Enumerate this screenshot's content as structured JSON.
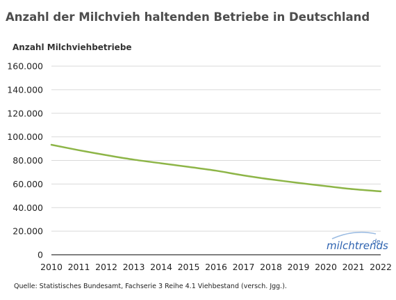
{
  "chart_data": {
    "type": "line",
    "title": "Anzahl der Milchvieh haltenden Betriebe in Deutschland",
    "ylabel": "Anzahl Milchviehbetriebe",
    "xlabel": "",
    "x": [
      "2010",
      "2011",
      "2012",
      "2013",
      "2014",
      "2015",
      "2016",
      "2017",
      "2018",
      "2019",
      "2020",
      "2021",
      "2022"
    ],
    "series": [
      {
        "values": [
          93300,
          88700,
          84500,
          80700,
          77600,
          74500,
          71300,
          67300,
          63900,
          61000,
          58200,
          55600,
          53800
        ]
      }
    ],
    "yticks": [
      "0",
      "20.000",
      "40.000",
      "60.000",
      "80.000",
      "100.000",
      "120.000",
      "140.000",
      "160.000"
    ],
    "ylim": [
      0,
      160000
    ],
    "grid": true,
    "line_color": "#8db547",
    "source": "Quelle: Statistisches Bundesamt, Fachserie 3 Reihe 4.1 Viehbestand (versch. Jgg.).",
    "watermark": {
      "text": "milchtrends",
      "sup": "de"
    }
  }
}
